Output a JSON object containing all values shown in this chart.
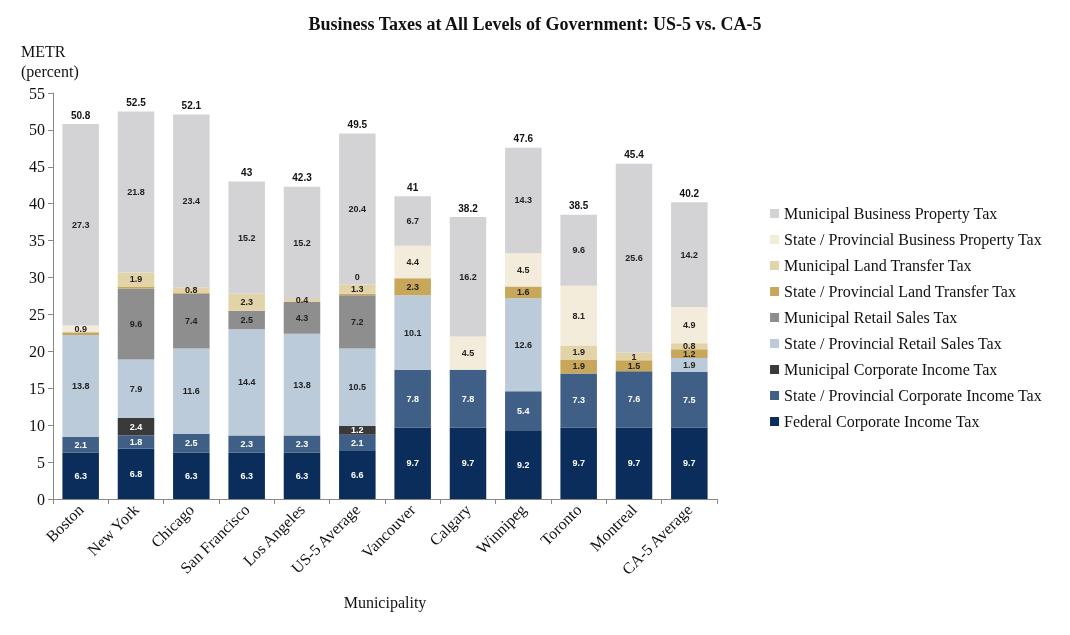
{
  "chart_data": {
    "type": "bar",
    "stacked": true,
    "title": "Business Taxes at All Levels of Government: US-5 vs. CA-5",
    "ylabel": "METR\n(percent)",
    "xlabel": "Municipality",
    "categories": [
      "Boston",
      "New York",
      "Chicago",
      "San Francisco",
      "Los Angeles",
      "US-5 Average",
      "Vancouver",
      "Calgary",
      "Winnipeg",
      "Toronto",
      "Montreal",
      "CA-5 Average"
    ],
    "series": [
      {
        "name": "Federal Corporate Income Tax",
        "color": "#0b2d5b",
        "values": [
          6.3,
          6.8,
          6.3,
          6.3,
          6.3,
          6.6,
          9.7,
          9.7,
          9.2,
          9.7,
          9.7,
          9.7
        ],
        "value_labels": [
          "6.3",
          "6.8",
          "6.3",
          "6.3",
          "6.3",
          "6.6",
          "9.7",
          "9.7",
          "9.2",
          "9.7",
          "9.7",
          "9.7"
        ]
      },
      {
        "name": "State / Provincial Corporate Income Tax",
        "color": "#3f5f86",
        "values": [
          2.1,
          1.8,
          2.5,
          2.3,
          2.3,
          2.1,
          7.8,
          7.8,
          5.4,
          7.3,
          7.6,
          7.5
        ],
        "value_labels": [
          "2.1",
          "1.8",
          "2.5",
          "2.3",
          "2.3",
          "2.1",
          "7.8",
          "7.8",
          "5.4",
          "7.3",
          "7.6",
          "7.5"
        ]
      },
      {
        "name": "Municipal Corporate Income Tax",
        "color": "#3a3a3a",
        "values": [
          null,
          2.4,
          null,
          null,
          null,
          1.2,
          null,
          null,
          null,
          null,
          null,
          null
        ],
        "value_labels": [
          null,
          "2.4",
          null,
          null,
          null,
          "1.2",
          null,
          null,
          null,
          null,
          null,
          null
        ]
      },
      {
        "name": "State / Provincial Retail Sales Tax",
        "color": "#bccbd9",
        "values": [
          13.8,
          7.9,
          11.6,
          14.4,
          13.8,
          10.5,
          10.1,
          null,
          12.6,
          null,
          null,
          1.9
        ],
        "value_labels": [
          "13.8",
          "7.9",
          "11.6",
          "14.4",
          "13.8",
          "10.5",
          "10.1",
          null,
          "12.6",
          null,
          null,
          "1.9"
        ]
      },
      {
        "name": "Municipal Retail Sales Tax",
        "color": "#8e8e8e",
        "values": [
          null,
          9.6,
          7.4,
          2.5,
          4.3,
          7.2,
          null,
          null,
          null,
          null,
          null,
          null
        ],
        "value_labels": [
          null,
          "9.6",
          "7.4",
          "2.5",
          "4.3",
          "7.2",
          null,
          null,
          null,
          null,
          null,
          null
        ]
      },
      {
        "name": "State / Provincial Land Transfer Tax",
        "color": "#c8a65a",
        "values": [
          0.4,
          0.3,
          0.1,
          null,
          null,
          0.2,
          2.3,
          null,
          1.6,
          1.9,
          1.5,
          1.2
        ],
        "value_labels": [
          null,
          null,
          null,
          null,
          null,
          null,
          "2.3",
          null,
          "1.6",
          "1.9",
          "1.5",
          "1.2"
        ]
      },
      {
        "name": "Municipal Land Transfer Tax",
        "color": "#e3d3a8",
        "values": [
          null,
          1.9,
          0.8,
          2.3,
          0.4,
          1.3,
          null,
          null,
          null,
          1.9,
          1,
          0.8
        ],
        "value_labels": [
          null,
          "1.9",
          "0.8",
          "2.3",
          "0.4",
          "1.3",
          null,
          null,
          null,
          "1.9",
          "1",
          "0.8"
        ]
      },
      {
        "name": "State / Provincial Business Property Tax",
        "color": "#f3ecda",
        "values": [
          0.9,
          null,
          null,
          null,
          null,
          0,
          4.4,
          4.5,
          4.5,
          8.1,
          null,
          4.9
        ],
        "value_labels": [
          "0.9",
          null,
          null,
          null,
          null,
          "0",
          "4.4",
          "4.5",
          "4.5",
          "8.1",
          null,
          "4.9"
        ]
      },
      {
        "name": "Municipal Business Property Tax",
        "color": "#d3d3d6",
        "values": [
          27.3,
          21.8,
          23.4,
          15.2,
          15.2,
          20.4,
          6.7,
          16.2,
          14.3,
          9.6,
          25.6,
          14.2
        ],
        "value_labels": [
          "27.3",
          "21.8",
          "23.4",
          "15.2",
          "15.2",
          "20.4",
          "6.7",
          "16.2",
          "14.3",
          "9.6",
          "25.6",
          "14.2"
        ]
      }
    ],
    "totals": [
      "50.8",
      "52.5",
      "52.1",
      "43",
      "42.3",
      "49.5",
      "41",
      "38.2",
      "47.6",
      "38.5",
      "45.4",
      "40.2"
    ],
    "ylim": [
      0,
      55
    ],
    "yticks": [
      0,
      5,
      10,
      15,
      20,
      25,
      30,
      35,
      40,
      45,
      50,
      55
    ],
    "grid": false,
    "legend": "right"
  }
}
